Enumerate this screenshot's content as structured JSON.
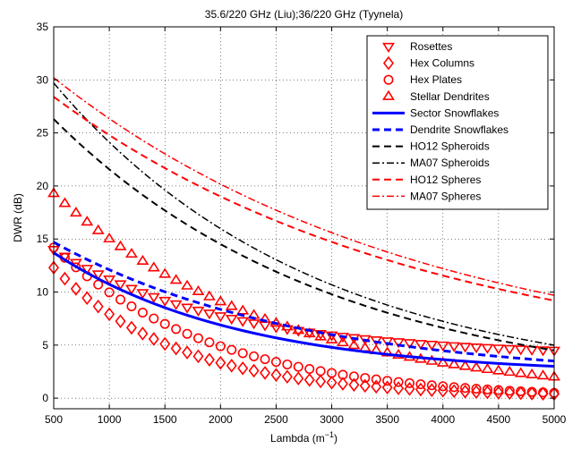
{
  "chart_data": {
    "type": "line",
    "title": "35.6/220 GHz (Liu);36/220 GHz (Tyynela)",
    "xlabel_main": "Lambda (m",
    "xlabel_sup": "−1",
    "xlabel_end": ")",
    "ylabel": "DWR (dB)",
    "xlim": [
      500,
      5000
    ],
    "ylim": [
      -1,
      35
    ],
    "xticks": [
      500,
      1000,
      1500,
      2000,
      2500,
      3000,
      3500,
      4000,
      4500,
      5000
    ],
    "yticks": [
      0,
      5,
      10,
      15,
      20,
      25,
      30,
      35
    ],
    "grid": true,
    "legend_position": "top-right",
    "model": {
      "x_start": 500,
      "x_end": 5000,
      "x_step": 100,
      "exponential_params_note": ""
    },
    "series": [
      {
        "name": "Rosettes",
        "style": "marker",
        "marker": "triangle-down",
        "color": "#ff0000",
        "y0": 14.0,
        "y1": 4.5,
        "k": 0.00065
      },
      {
        "name": "Hex Columns",
        "style": "marker",
        "marker": "diamond",
        "color": "#ff0000",
        "y0": 12.3,
        "y1": 0.4,
        "k": 0.0009
      },
      {
        "name": "Hex Plates",
        "style": "marker",
        "marker": "circle",
        "color": "#ff0000",
        "y0": 14.2,
        "y1": 0.5,
        "k": 0.0007
      },
      {
        "name": "Stellar Dendrites",
        "style": "marker",
        "marker": "triangle-up",
        "color": "#ff0000",
        "y0": 19.3,
        "y1": 2.0,
        "k": 0.0005
      },
      {
        "name": "Sector Snowflakes",
        "style": "solid",
        "color": "#0000ff",
        "width": 3,
        "y0": 13.7,
        "y1": 3.0,
        "k": 0.0006
      },
      {
        "name": "Dendrite Snowflakes",
        "style": "dashed",
        "color": "#0000ff",
        "width": 3,
        "y0": 14.7,
        "y1": 3.5,
        "k": 0.00045
      },
      {
        "name": "HO12 Spheroids",
        "style": "dashed",
        "color": "#000000",
        "width": 2,
        "y0": 26.3,
        "y1": 4.5,
        "k": 0.0004
      },
      {
        "name": "MA07 Spheroids",
        "style": "dashdot",
        "color": "#000000",
        "width": 1.5,
        "y0": 29.7,
        "y1": 5.0,
        "k": 0.00043
      },
      {
        "name": "HO12 Spheres",
        "style": "dashed",
        "color": "#ff0000",
        "width": 2,
        "y0": 28.4,
        "y1": 9.2,
        "k": 0.0003
      },
      {
        "name": "MA07 Spheres",
        "style": "dashdot",
        "color": "#ff0000",
        "width": 1.5,
        "y0": 30.2,
        "y1": 9.7,
        "k": 0.0003
      }
    ]
  }
}
